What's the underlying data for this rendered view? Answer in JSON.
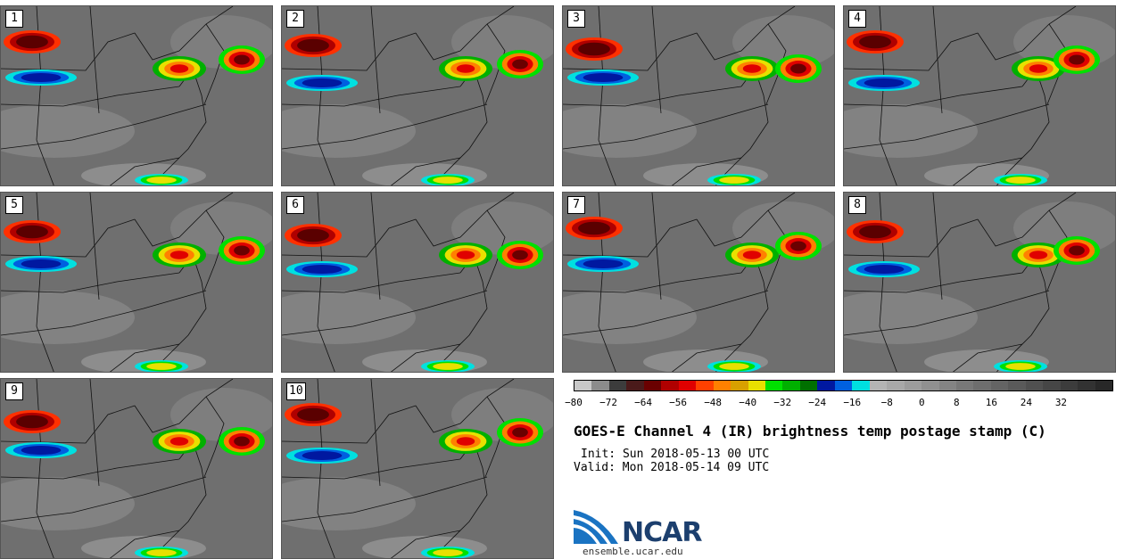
{
  "panels": [
    {
      "label": "1"
    },
    {
      "label": "2"
    },
    {
      "label": "3"
    },
    {
      "label": "4"
    },
    {
      "label": "5"
    },
    {
      "label": "6"
    },
    {
      "label": "7"
    },
    {
      "label": "8"
    },
    {
      "label": "9"
    },
    {
      "label": "10"
    }
  ],
  "colorbar": {
    "colors": [
      "#c8c8c8",
      "#8c8c8c",
      "#3c3c3c",
      "#4a1a1a",
      "#6a0000",
      "#b00000",
      "#e00000",
      "#ff4000",
      "#ff8000",
      "#d8a000",
      "#e8e000",
      "#00e000",
      "#00b000",
      "#007000",
      "#0018a0",
      "#0060e0",
      "#00e0e0",
      "#b4b4b4",
      "#a8a8a8",
      "#9c9c9c",
      "#909090",
      "#848484",
      "#787878",
      "#6e6e6e",
      "#646464",
      "#5a5a5a",
      "#505050",
      "#464646",
      "#3c3c3c",
      "#323232",
      "#282828"
    ],
    "ticks": [
      "−80",
      "−72",
      "−64",
      "−56",
      "−48",
      "−40",
      "−32",
      "−24",
      "−16",
      "−8",
      "0",
      "8",
      "16",
      "24",
      "32"
    ]
  },
  "title": "GOES-E Channel 4 (IR) brightness temp postage stamp (C)",
  "init": "Init: Sun 2018-05-13 00 UTC",
  "valid": "Valid: Mon 2018-05-14 09 UTC",
  "logo": {
    "text": "NCAR",
    "url": "ensemble.ucar.edu"
  }
}
